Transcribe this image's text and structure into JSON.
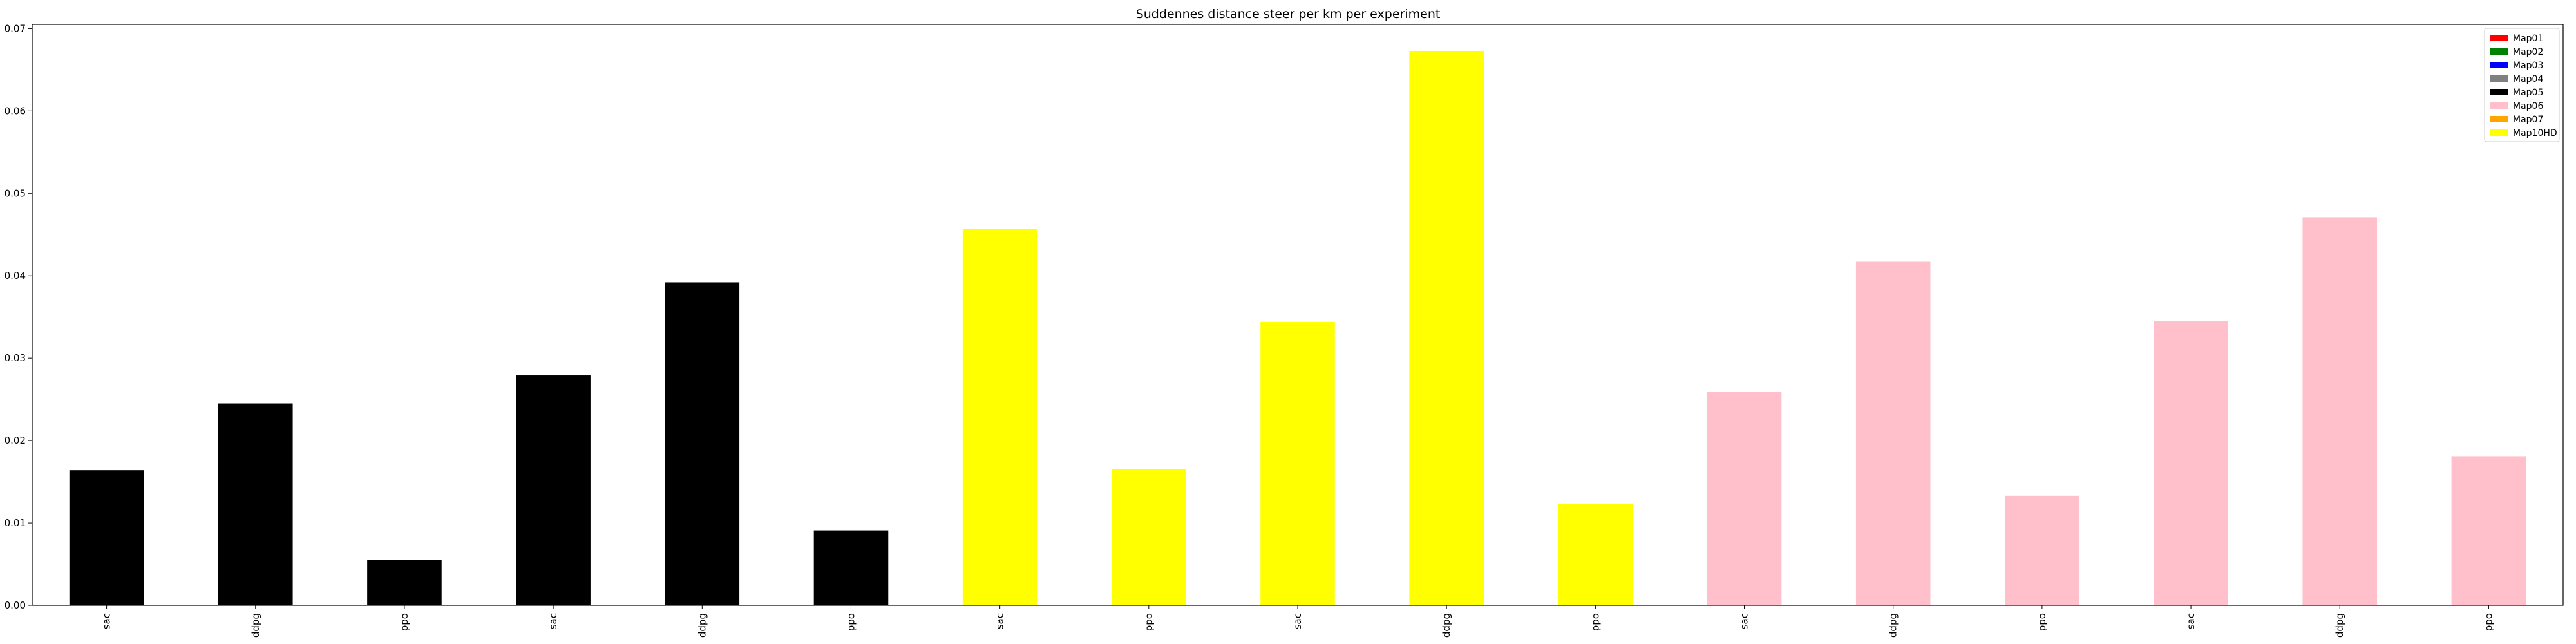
{
  "chart_data": {
    "type": "bar",
    "title": "Suddennes distance steer per km per experiment",
    "xlabel": "",
    "ylabel": "",
    "ylim": [
      0,
      0.0705
    ],
    "yticks": [
      "0.00",
      "0.01",
      "0.02",
      "0.03",
      "0.04",
      "0.05",
      "0.06",
      "0.07"
    ],
    "grid": false,
    "legend_position": "top-right",
    "legend": [
      {
        "label": "Map01",
        "color": "#ff0000"
      },
      {
        "label": "Map02",
        "color": "#008000"
      },
      {
        "label": "Map03",
        "color": "#0000ff"
      },
      {
        "label": "Map04",
        "color": "#808080"
      },
      {
        "label": "Map05",
        "color": "#000000"
      },
      {
        "label": "Map06",
        "color": "#ffc0cb"
      },
      {
        "label": "Map07",
        "color": "#ffa500"
      },
      {
        "label": "Map10HD",
        "color": "#ffff00"
      }
    ],
    "categories": [
      "sac",
      "ddpg",
      "ppo",
      "sac",
      "ddpg",
      "ppo",
      "sac",
      "ppo",
      "sac",
      "ddpg",
      "ppo",
      "sac",
      "ddpg",
      "ppo",
      "sac",
      "ddpg",
      "ppo"
    ],
    "values": [
      0.0164,
      0.0245,
      0.0055,
      0.0279,
      0.0392,
      0.0091,
      0.0457,
      0.0165,
      0.0344,
      0.0673,
      0.0123,
      0.0259,
      0.0417,
      0.0133,
      0.0345,
      0.0471,
      0.0181
    ],
    "bar_colors": [
      "#000000",
      "#000000",
      "#000000",
      "#000000",
      "#000000",
      "#000000",
      "#ffff00",
      "#ffff00",
      "#ffff00",
      "#ffff00",
      "#ffff00",
      "#ffc0cb",
      "#ffc0cb",
      "#ffc0cb",
      "#ffc0cb",
      "#ffc0cb",
      "#ffc0cb"
    ]
  }
}
